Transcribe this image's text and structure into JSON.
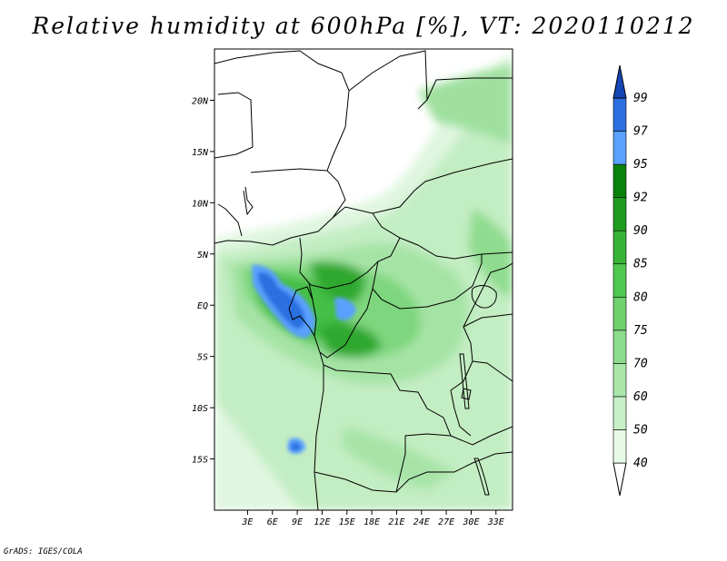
{
  "title": "Relative humidity at 600hPa [%], VT: 2020110212",
  "credit": "GrADS: IGES/COLA",
  "map": {
    "lon_range": [
      -1,
      35
    ],
    "lat_range": [
      -20,
      25
    ],
    "lon_ticks": [
      {
        "value": 3,
        "label": "3E"
      },
      {
        "value": 6,
        "label": "6E"
      },
      {
        "value": 9,
        "label": "9E"
      },
      {
        "value": 12,
        "label": "12E"
      },
      {
        "value": 15,
        "label": "15E"
      },
      {
        "value": 18,
        "label": "18E"
      },
      {
        "value": 21,
        "label": "21E"
      },
      {
        "value": 24,
        "label": "24E"
      },
      {
        "value": 27,
        "label": "27E"
      },
      {
        "value": 30,
        "label": "30E"
      },
      {
        "value": 33,
        "label": "33E"
      }
    ],
    "lat_ticks": [
      {
        "value": 20,
        "label": "20N"
      },
      {
        "value": 15,
        "label": "15N"
      },
      {
        "value": 10,
        "label": "10N"
      },
      {
        "value": 5,
        "label": "5N"
      },
      {
        "value": 0,
        "label": "EQ"
      },
      {
        "value": -5,
        "label": "5S"
      },
      {
        "value": -10,
        "label": "10S"
      },
      {
        "value": -15,
        "label": "15S"
      }
    ]
  },
  "colorbar": {
    "levels": [
      "40",
      "50",
      "60",
      "70",
      "75",
      "80",
      "85",
      "90",
      "92",
      "95",
      "97",
      "99"
    ],
    "colors": [
      "#ffffff",
      "#e6fae6",
      "#c8f0c8",
      "#aae6aa",
      "#8cdc8c",
      "#6ed26e",
      "#50c850",
      "#37b437",
      "#1e9c1e",
      "#0a820a",
      "#5aa0ff",
      "#2c6fe0",
      "#1446b4"
    ]
  }
}
